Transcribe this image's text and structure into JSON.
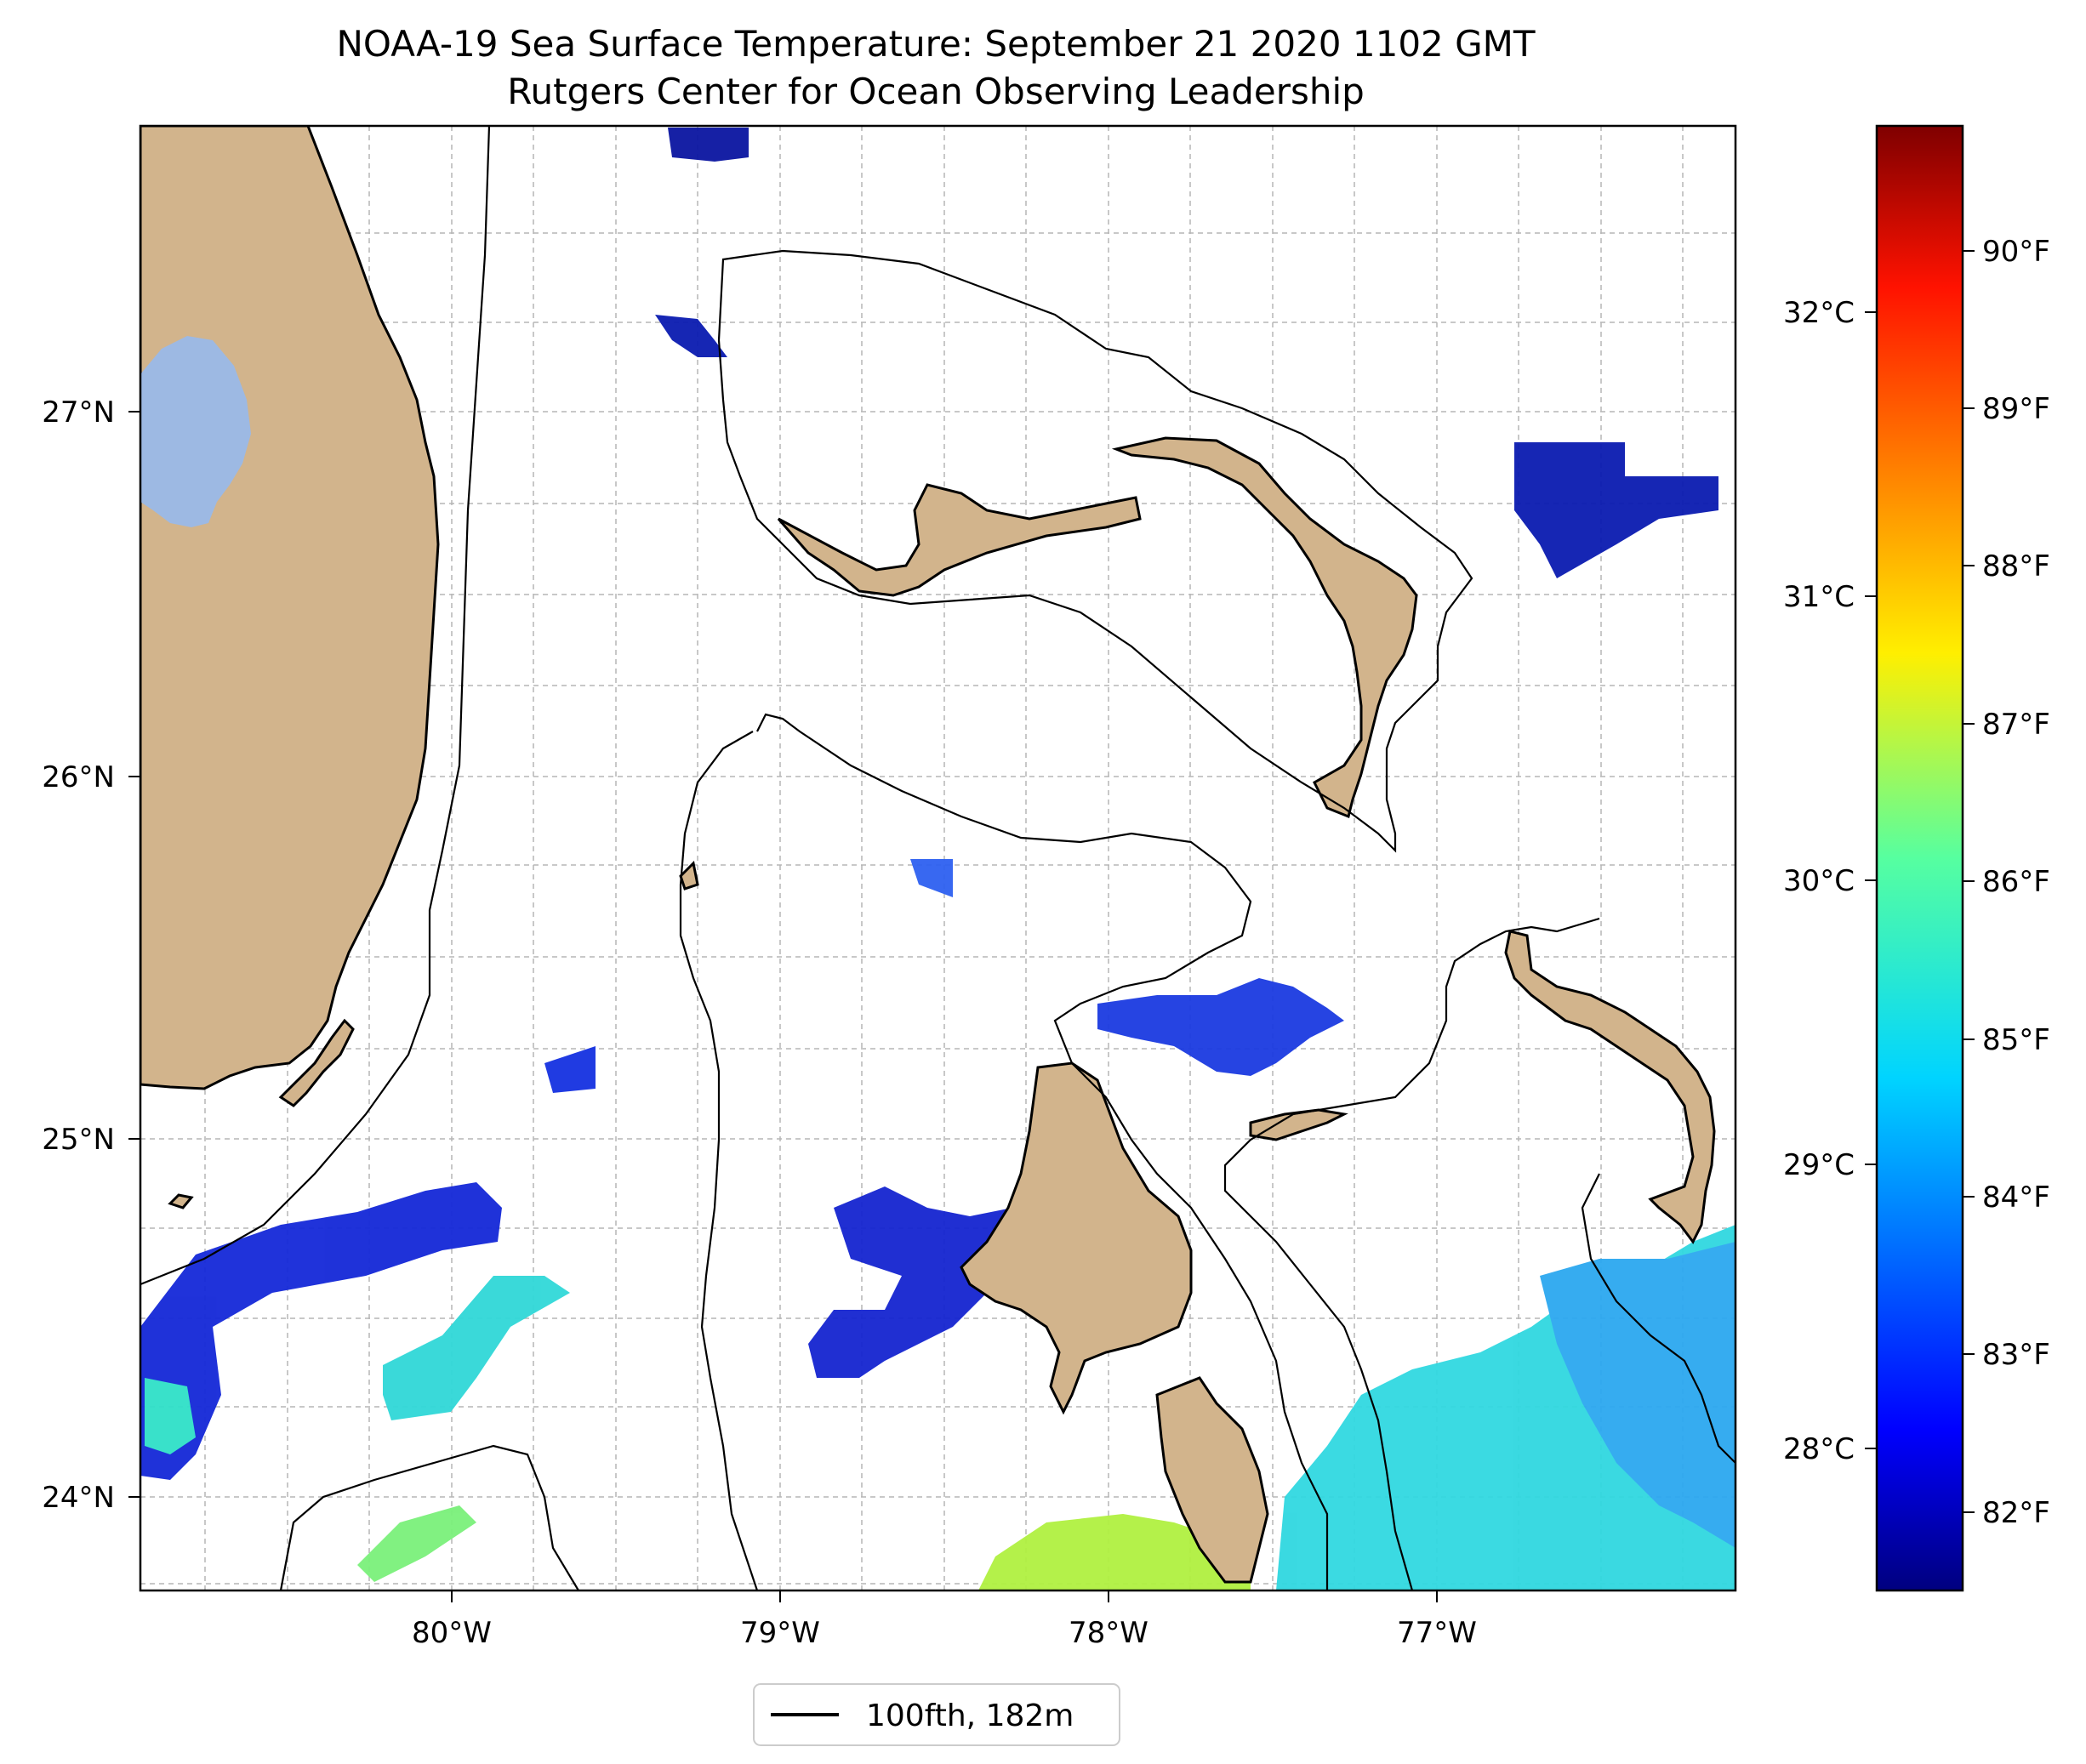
{
  "title": {
    "line1": "NOAA-19 Sea Surface Temperature: September 21 2020 1102 GMT",
    "line2": "Rutgers Center for Ocean Observing Leadership"
  },
  "map": {
    "lon_range": [
      -80.96,
      -76.11
    ],
    "lat_range": [
      23.74,
      27.8
    ],
    "x_ticks": [
      "80°W",
      "79°W",
      "78°W",
      "77°W"
    ],
    "y_ticks": [
      "27°N",
      "26°N",
      "25°N",
      "24°N"
    ],
    "grid": true,
    "colors": {
      "land": "#d2b48c",
      "lake": "#9db9e3",
      "contour": "#000000",
      "grid": "#b0b0b0"
    }
  },
  "colorbar": {
    "colormap": "jet",
    "range_c": [
      27.5,
      32.5
    ],
    "celsius_ticks": [
      "32°C",
      "31°C",
      "30°C",
      "29°C",
      "28°C"
    ],
    "fahrenheit_ticks": [
      "90°F",
      "89°F",
      "88°F",
      "87°F",
      "86°F",
      "85°F",
      "84°F",
      "83°F",
      "82°F"
    ]
  },
  "legend": {
    "label": "100fth, 182m"
  }
}
